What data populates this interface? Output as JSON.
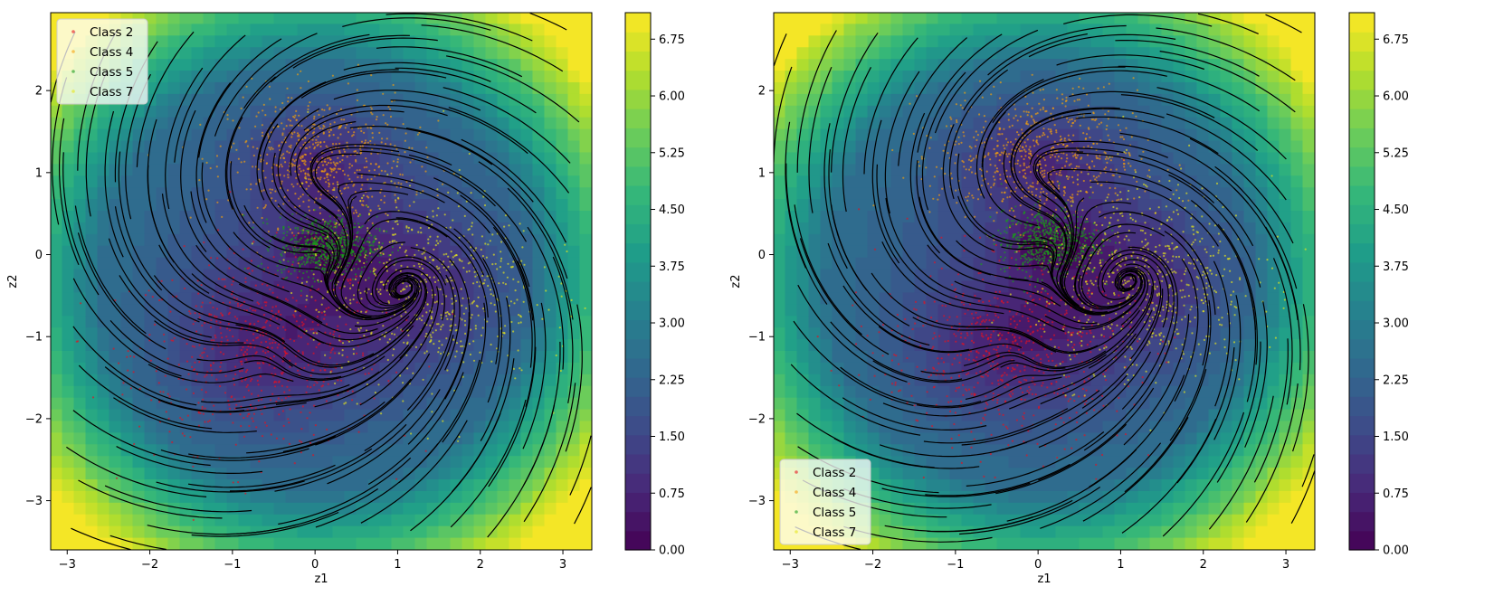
{
  "chart_data": [
    {
      "type": "contour",
      "xlabel": "z1",
      "ylabel": "z2",
      "xlim": [
        -3.2,
        3.35
      ],
      "ylim": [
        -3.6,
        2.95
      ],
      "x_ticks": [
        -3,
        -2,
        -1,
        0,
        1,
        2,
        3
      ],
      "y_ticks": [
        -3,
        -2,
        -1,
        0,
        1,
        2
      ],
      "legend_position": "top-left",
      "legend": [
        "Class 2",
        "Class 4",
        "Class 5",
        "Class 7"
      ],
      "colorbar": {
        "range": [
          0,
          7.1
        ],
        "ticks": [
          "0.00",
          "0.75",
          "1.50",
          "2.25",
          "3.00",
          "3.75",
          "4.50",
          "5.25",
          "6.00",
          "6.75"
        ],
        "colormap": "viridis"
      },
      "streamlines": true,
      "series": [
        {
          "name": "Class 2",
          "color": "#e8101e",
          "center": [
            -0.7,
            -1.2
          ],
          "spread": [
            0.75,
            0.6
          ]
        },
        {
          "name": "Class 4",
          "color": "#f5a00b",
          "center": [
            0.05,
            1.15
          ],
          "spread": [
            0.55,
            0.4
          ]
        },
        {
          "name": "Class 5",
          "color": "#1a9c1a",
          "center": [
            0.15,
            0.1
          ],
          "spread": [
            0.3,
            0.18
          ]
        },
        {
          "name": "Class 7",
          "color": "#e6e61a",
          "center": [
            1.3,
            -0.4
          ],
          "spread": [
            0.7,
            0.6
          ]
        }
      ]
    },
    {
      "type": "contour",
      "xlabel": "z1",
      "ylabel": "z2",
      "xlim": [
        -3.2,
        3.35
      ],
      "ylim": [
        -3.6,
        2.95
      ],
      "x_ticks": [
        -3,
        -2,
        -1,
        0,
        1,
        2,
        3
      ],
      "y_ticks": [
        -3,
        -2,
        -1,
        0,
        1,
        2
      ],
      "legend_position": "bottom-left",
      "legend": [
        "Class 2",
        "Class 4",
        "Class 5",
        "Class 7"
      ],
      "colorbar": {
        "range": [
          0,
          7.1
        ],
        "ticks": [
          "0.00",
          "0.75",
          "1.50",
          "2.25",
          "3.00",
          "3.75",
          "4.50",
          "5.25",
          "6.00",
          "6.75"
        ],
        "colormap": "viridis"
      },
      "streamlines": true,
      "series": [
        {
          "name": "Class 2",
          "color": "#e8101e",
          "center": [
            -0.4,
            -1.2
          ],
          "spread": [
            0.75,
            0.55
          ]
        },
        {
          "name": "Class 4",
          "color": "#f5a00b",
          "center": [
            0.0,
            1.2
          ],
          "spread": [
            0.6,
            0.4
          ]
        },
        {
          "name": "Class 5",
          "color": "#1a9c1a",
          "center": [
            0.15,
            0.15
          ],
          "spread": [
            0.3,
            0.2
          ]
        },
        {
          "name": "Class 7",
          "color": "#e6e61a",
          "center": [
            1.3,
            -0.3
          ],
          "spread": [
            0.65,
            0.6
          ]
        }
      ]
    }
  ]
}
